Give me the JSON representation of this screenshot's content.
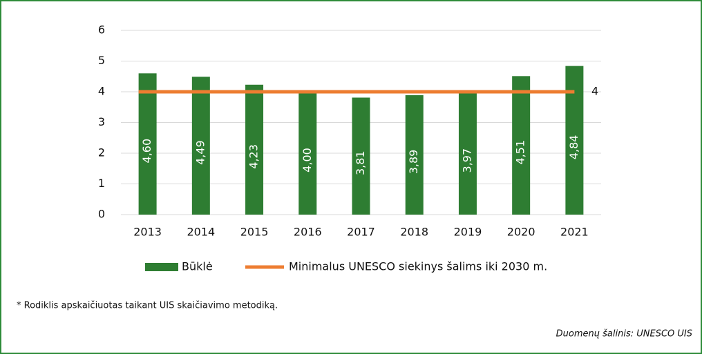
{
  "chart_data": {
    "type": "bar",
    "categories": [
      "2013",
      "2014",
      "2015",
      "2016",
      "2017",
      "2018",
      "2019",
      "2020",
      "2021"
    ],
    "series": [
      {
        "name": "Būklė",
        "color": "#2e7d32",
        "values": [
          4.6,
          4.49,
          4.23,
          4.0,
          3.81,
          3.89,
          3.97,
          4.51,
          4.84
        ],
        "value_labels": [
          "4,60",
          "4,49",
          "4,23",
          "4,00",
          "3,81",
          "3,89",
          "3,97",
          "4,51",
          "4,84"
        ]
      },
      {
        "name": "Minimalus UNESCO siekinys šalims iki 2030 m.",
        "type": "line",
        "color": "#ed7d31",
        "values": [
          4,
          4,
          4,
          4,
          4,
          4,
          4,
          4,
          4
        ]
      }
    ],
    "ylim": [
      0,
      6
    ],
    "yticks": [
      0,
      1,
      2,
      3,
      4,
      5,
      6
    ],
    "grid": true,
    "legend": "bottom"
  },
  "notes": {
    "footnote": "* Rodiklis apskaičiuotas taikant UIS skaičiavimo metodiką.",
    "source": "Duomenų šalinis: UNESCO UIS"
  }
}
